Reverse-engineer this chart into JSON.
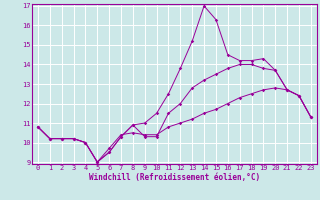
{
  "title": "",
  "xlabel": "Windchill (Refroidissement éolien,°C)",
  "ylabel": "",
  "background_color": "#cce8e8",
  "grid_color": "#ffffff",
  "line_color": "#990099",
  "ylim": [
    9,
    17
  ],
  "xlim": [
    -0.5,
    23.5
  ],
  "yticks": [
    9,
    10,
    11,
    12,
    13,
    14,
    15,
    16,
    17
  ],
  "xticks": [
    0,
    1,
    2,
    3,
    4,
    5,
    6,
    7,
    8,
    9,
    10,
    11,
    12,
    13,
    14,
    15,
    16,
    17,
    18,
    19,
    20,
    21,
    22,
    23
  ],
  "tick_fontsize": 5,
  "xlabel_fontsize": 5.5,
  "series": [
    [
      10.8,
      10.2,
      10.2,
      10.2,
      10.0,
      9.0,
      9.5,
      10.3,
      10.9,
      11.0,
      11.5,
      12.5,
      13.8,
      15.2,
      17.0,
      16.3,
      14.5,
      14.2,
      14.2,
      14.3,
      13.7,
      12.7,
      12.4,
      11.3
    ],
    [
      10.8,
      10.2,
      10.2,
      10.2,
      10.0,
      9.0,
      9.5,
      10.3,
      10.9,
      10.3,
      10.3,
      11.5,
      12.0,
      12.8,
      13.2,
      13.5,
      13.8,
      14.0,
      14.0,
      13.8,
      13.7,
      12.7,
      12.4,
      11.3
    ],
    [
      10.8,
      10.2,
      10.2,
      10.2,
      10.0,
      9.0,
      9.7,
      10.4,
      10.5,
      10.4,
      10.4,
      10.8,
      11.0,
      11.2,
      11.5,
      11.7,
      12.0,
      12.3,
      12.5,
      12.7,
      12.8,
      12.7,
      12.4,
      11.3
    ]
  ]
}
